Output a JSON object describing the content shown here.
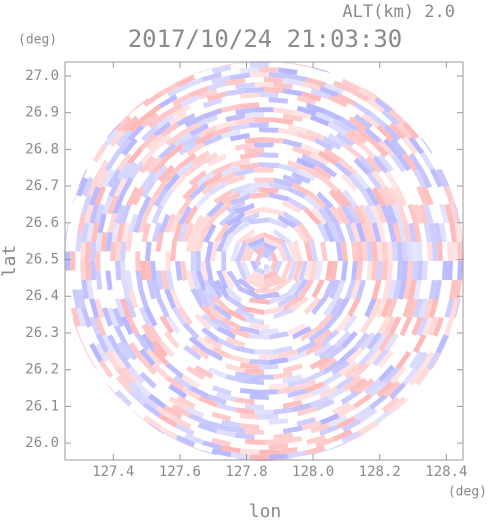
{
  "chart_data": {
    "type": "radar-ppi",
    "title": "2017/10/24 21:03:30",
    "subtitle": "ALT(km) 2.0",
    "xlabel": "lon",
    "ylabel": "lat",
    "xunit": "(deg)",
    "yunit": "(deg)",
    "xlim": [
      127.255,
      128.45
    ],
    "ylim": [
      25.954,
      27.038
    ],
    "xticks": [
      127.4,
      127.6,
      127.8,
      {
        "value": 128.0,
        "label": "128.0"
      },
      128.2,
      128.4
    ],
    "yticks": [
      {
        "value": 26.0,
        "label": "26.0"
      },
      26.1,
      26.2,
      26.3,
      26.4,
      26.5,
      26.6,
      26.7,
      26.8,
      26.9,
      {
        "value": 27.0,
        "label": "27.0"
      }
    ],
    "colors": [
      "#ff9e9e",
      "#9e9eff"
    ]
  }
}
